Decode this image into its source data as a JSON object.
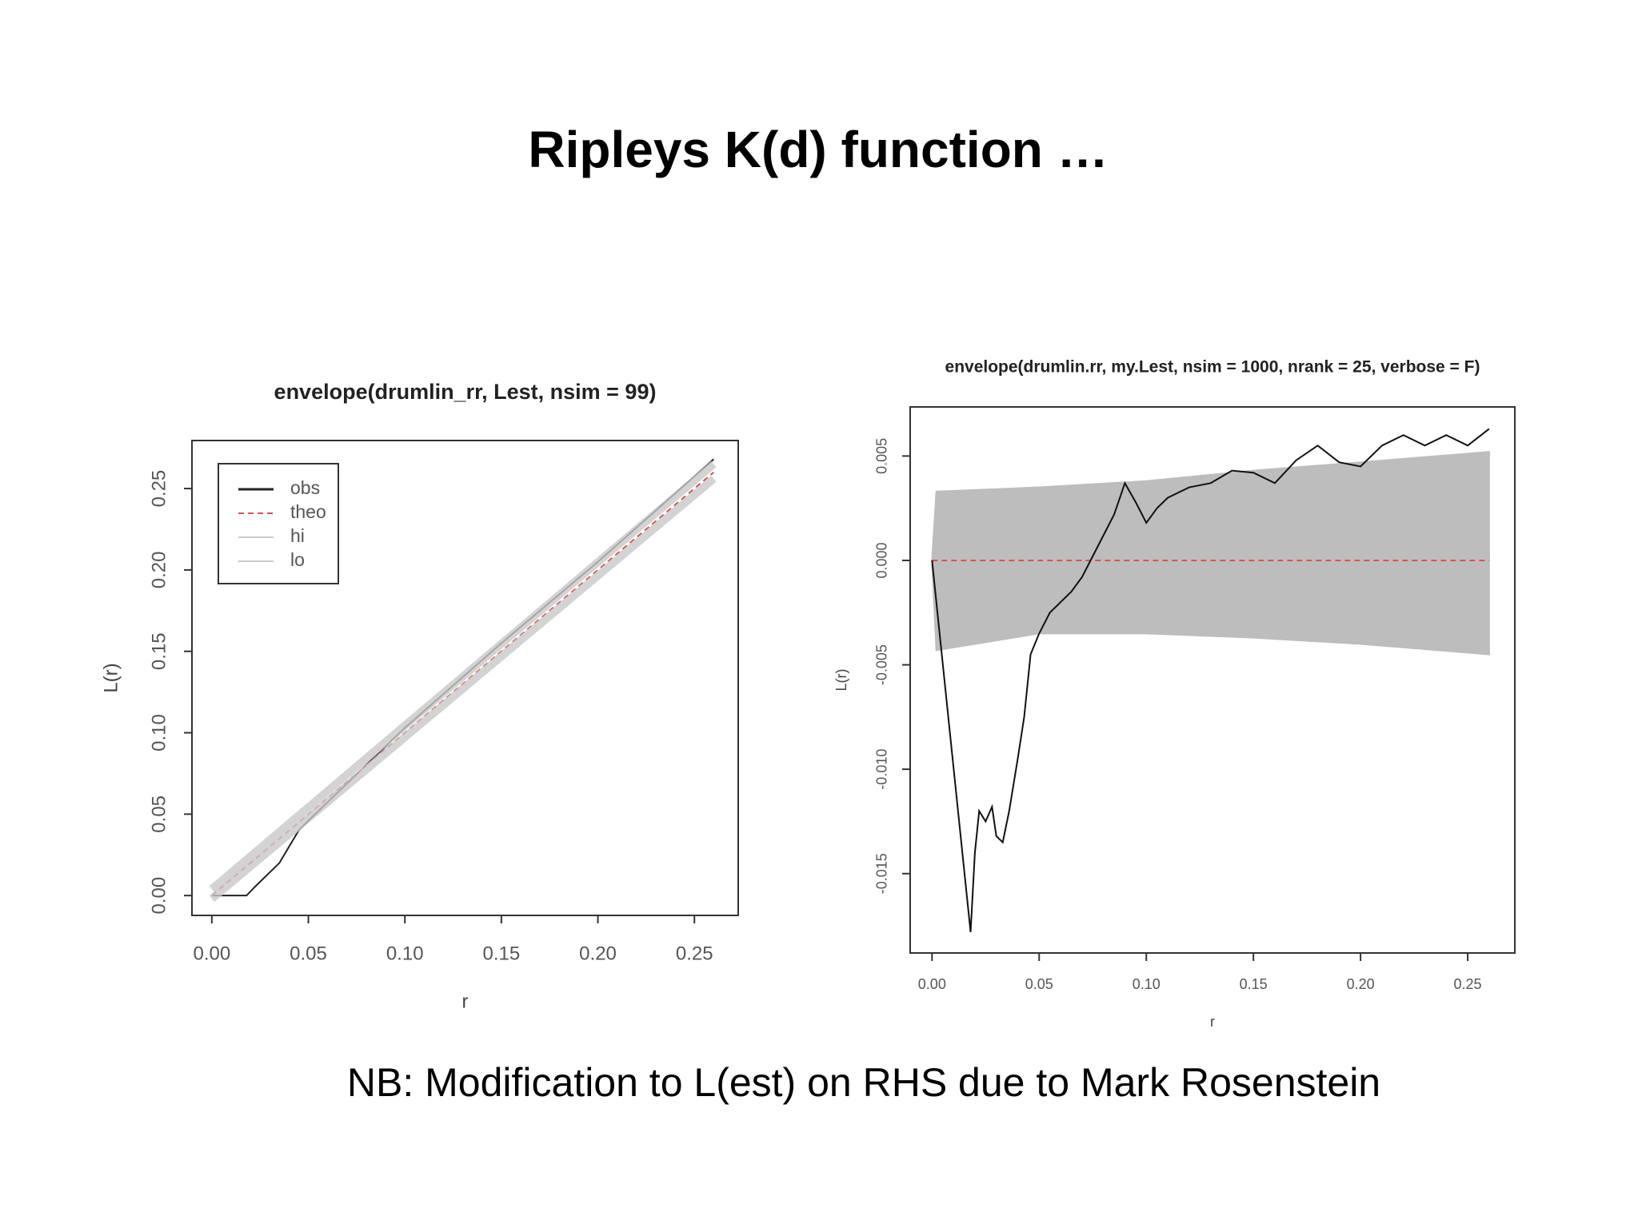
{
  "title": "Ripleys K(d) function …",
  "footnote": "NB: Modification to L(est) on RHS due to Mark Rosenstein",
  "chart_data": [
    {
      "type": "line",
      "title": "envelope(drumlin_rr, Lest, nsim = 99)",
      "x_label": "r",
      "y_label": "L(r)",
      "xlim": [
        -0.0103,
        0.2727
      ],
      "ylim": [
        -0.0122,
        0.2795
      ],
      "xticks": [
        {
          "value": 0,
          "label": "0.00"
        },
        0.05,
        {
          "value": 0.1,
          "label": "0.10"
        },
        0.15,
        {
          "value": 0.2,
          "label": "0.20"
        },
        0.25
      ],
      "yticks": [
        {
          "value": 0,
          "label": "0.00"
        },
        0.05,
        {
          "value": 0.1,
          "label": "0.10"
        },
        0.15,
        {
          "value": 0.2,
          "label": "0.20"
        },
        0.25
      ],
      "legend": "top-left",
      "series": [
        {
          "name": "obs",
          "color": "#222222",
          "x": [
            0,
            0.018,
            0.022,
            0.035,
            0.045,
            0.05,
            0.1,
            0.15,
            0.2,
            0.26
          ],
          "values": [
            0,
            0,
            0.005,
            0.02,
            0.04,
            0.046,
            0.103,
            0.155,
            0.205,
            0.268
          ]
        },
        {
          "name": "theo",
          "color": "#d9534f",
          "dash": true,
          "x": [
            0,
            0.26
          ],
          "values": [
            0,
            0.26
          ]
        },
        {
          "name": "hi",
          "color": "#c8c8c8",
          "x": [
            0,
            0.26
          ],
          "values": [
            0.004,
            0.265
          ]
        },
        {
          "name": "lo",
          "color": "#c8c8c8",
          "x": [
            0,
            0.26
          ],
          "values": [
            -0.002,
            0.256
          ]
        }
      ]
    },
    {
      "type": "line",
      "title": "envelope(drumlin.rr, my.Lest, nsim = 1000, nrank = 25, verbose = F)",
      "x_label": "r",
      "y_label": "L(r)",
      "xlim": [
        -0.0102,
        0.272
      ],
      "ylim": [
        -0.0188,
        0.00735
      ],
      "xticks": [
        {
          "value": 0,
          "label": "0.00"
        },
        0.05,
        {
          "value": 0.1,
          "label": "0.10"
        },
        0.15,
        {
          "value": 0.2,
          "label": "0.20"
        },
        0.25
      ],
      "yticks": [
        0.005,
        {
          "value": 0,
          "label": "0.000"
        },
        -0.005,
        {
          "value": -0.01,
          "label": "-0.010"
        },
        -0.015
      ],
      "series": [
        {
          "color": "#bdbdbd",
          "area": true,
          "x": [
            0,
            0.002,
            0.05,
            0.1,
            0.15,
            0.2,
            0.26
          ],
          "values": [
            0,
            0.0033,
            0.0035,
            0.0038,
            0.0043,
            0.0047,
            0.0052
          ]
        },
        {
          "color": "#bdbdbd",
          "area": true,
          "x": [
            0,
            0.002,
            0.05,
            0.1,
            0.15,
            0.2,
            0.26
          ],
          "values": [
            0,
            -0.0043,
            -0.0035,
            -0.0035,
            -0.0037,
            -0.004,
            -0.0045
          ]
        },
        {
          "color": "#d9534f",
          "dash": true,
          "x": [
            0,
            0.26
          ],
          "values": [
            0,
            0
          ]
        },
        {
          "color": "#111111",
          "x": [
            0,
            0.018,
            0.02,
            0.022,
            0.025,
            0.028,
            0.03,
            0.033,
            0.036,
            0.04,
            0.043,
            0.046,
            0.05,
            0.055,
            0.06,
            0.065,
            0.07,
            0.075,
            0.08,
            0.085,
            0.09,
            0.095,
            0.1,
            0.105,
            0.11,
            0.12,
            0.13,
            0.14,
            0.15,
            0.16,
            0.17,
            0.18,
            0.19,
            0.2,
            0.21,
            0.22,
            0.23,
            0.24,
            0.25,
            0.26
          ],
          "values": [
            0,
            -0.0178,
            -0.014,
            -0.012,
            -0.0125,
            -0.0118,
            -0.0132,
            -0.0135,
            -0.012,
            -0.0095,
            -0.0075,
            -0.0045,
            -0.0035,
            -0.0025,
            -0.002,
            -0.0015,
            -0.0008,
            0.0002,
            0.0012,
            0.0022,
            0.0037,
            0.0028,
            0.0018,
            0.0025,
            0.003,
            0.0035,
            0.0037,
            0.0043,
            0.0042,
            0.0037,
            0.0048,
            0.0055,
            0.0047,
            0.0045,
            0.0055,
            0.006,
            0.0055,
            0.006,
            0.0055,
            0.0063
          ]
        }
      ]
    }
  ]
}
